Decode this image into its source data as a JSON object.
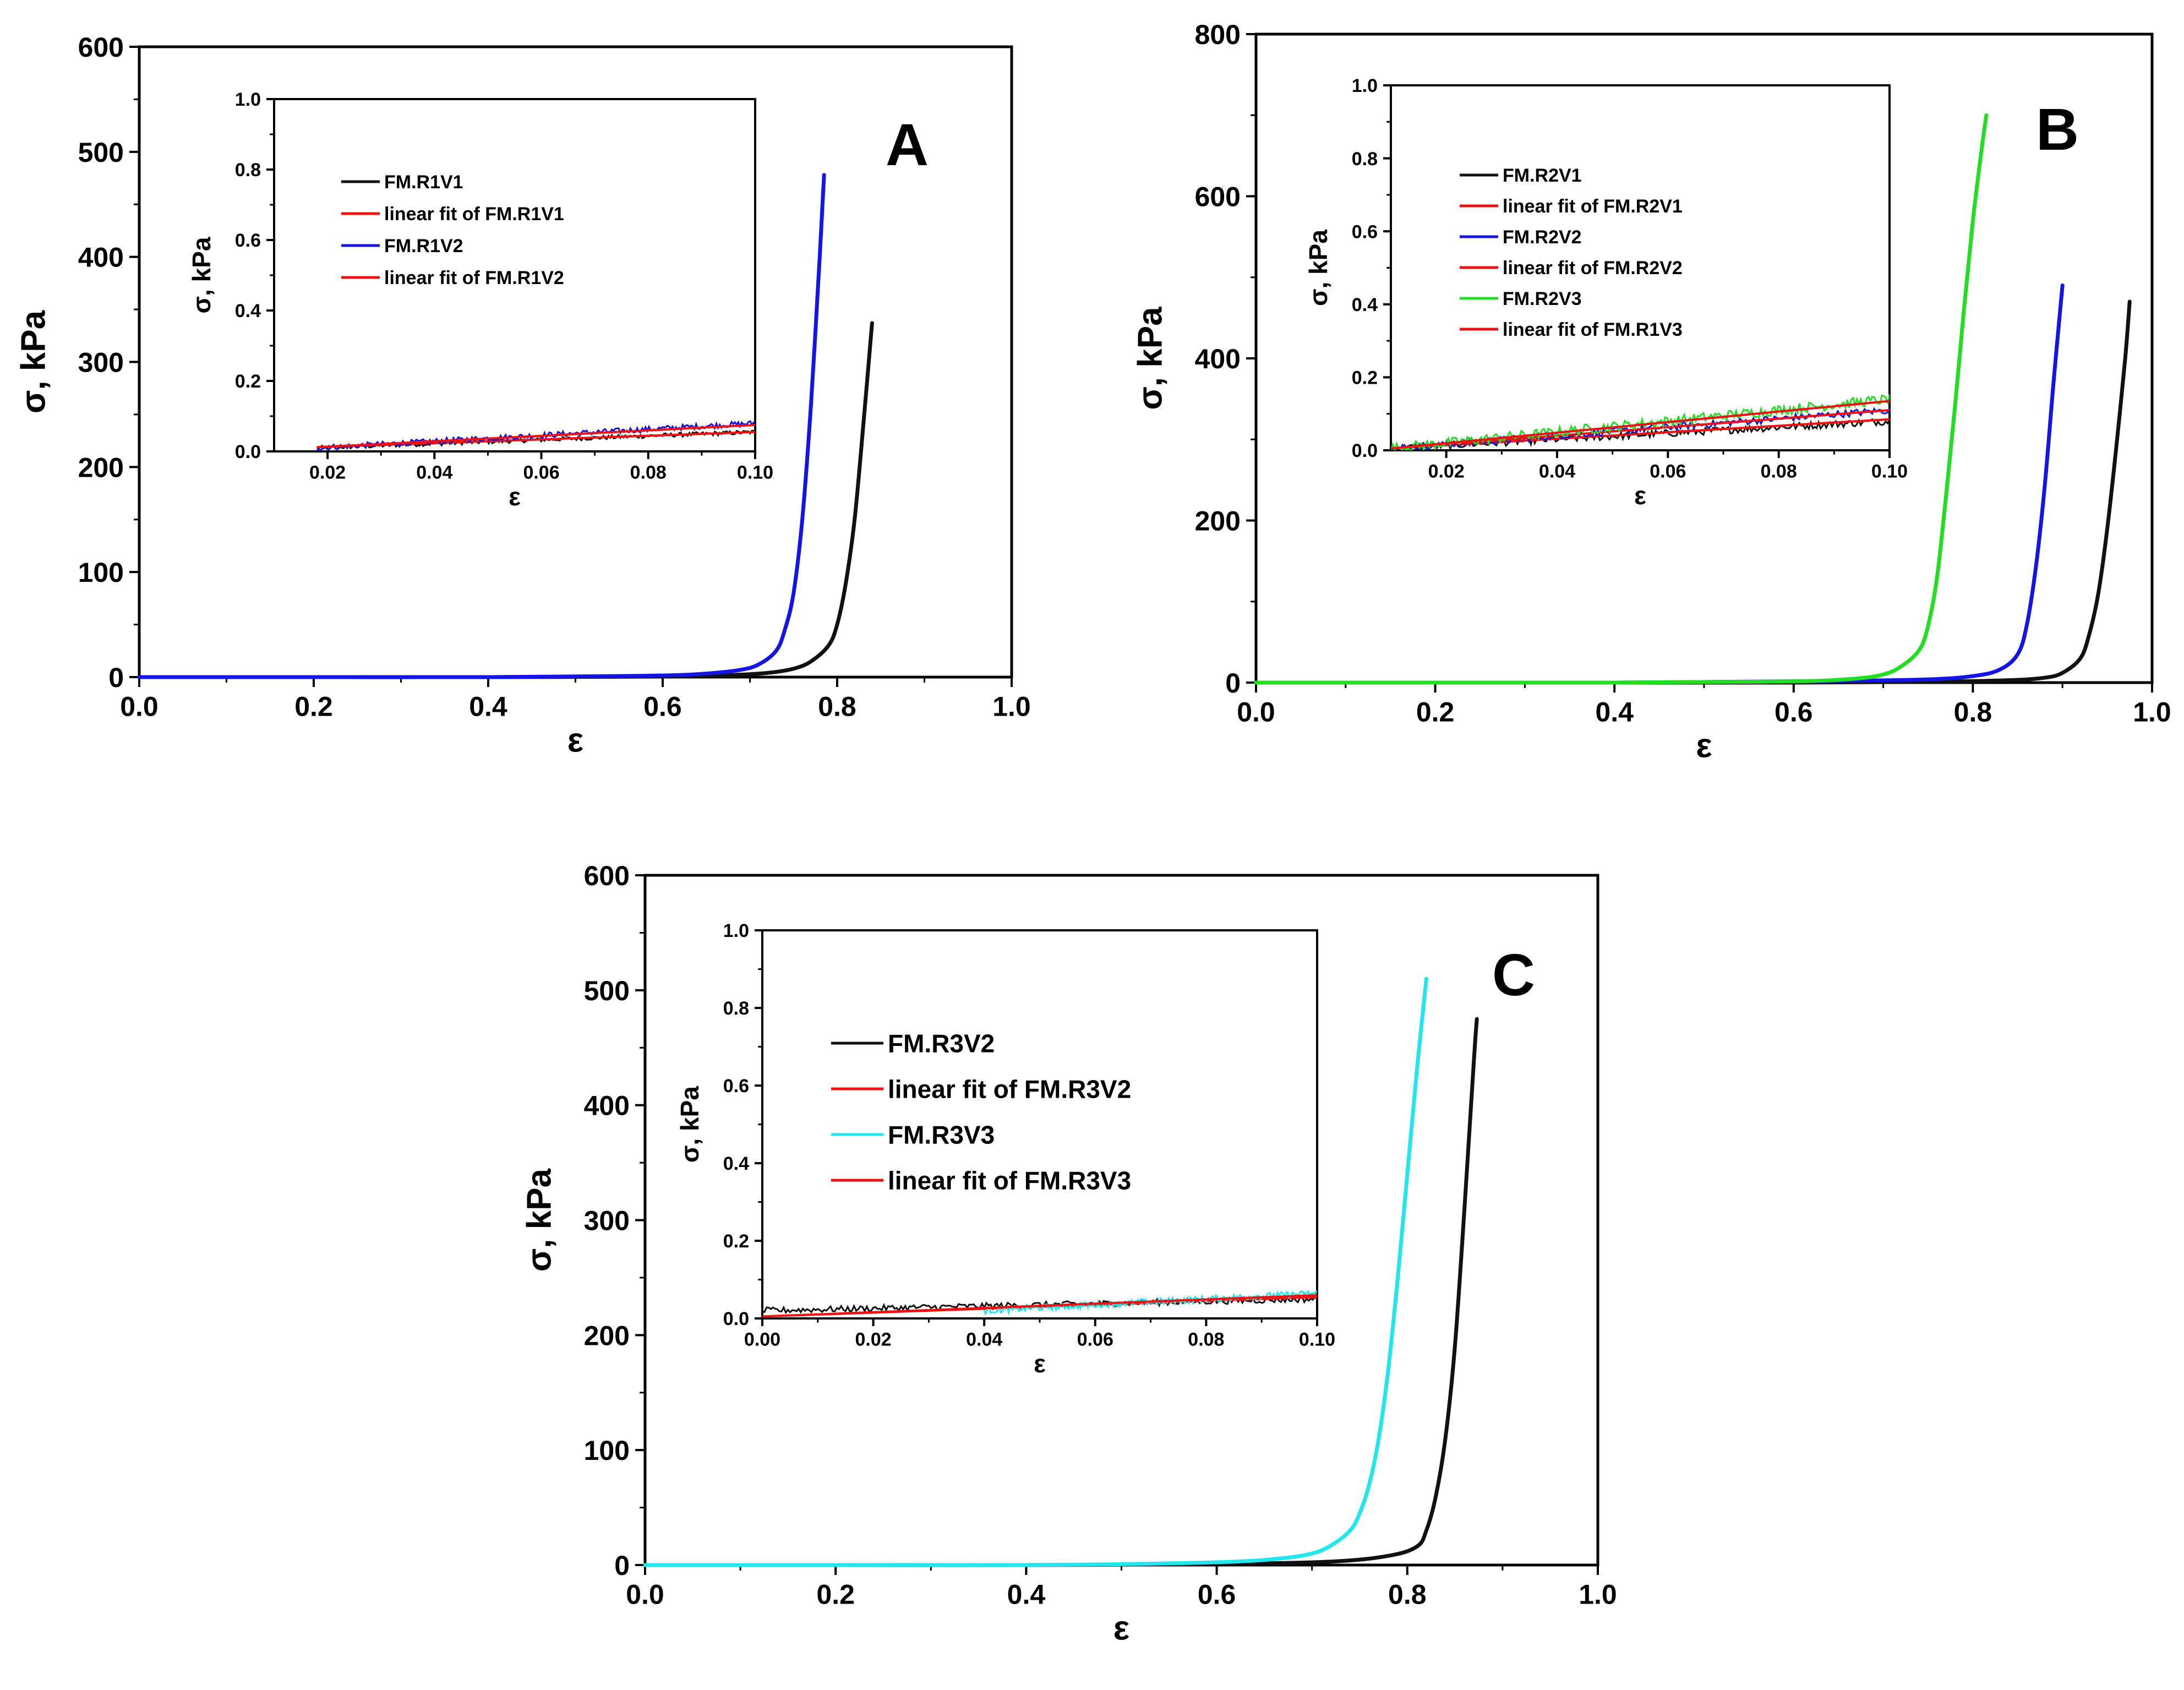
{
  "colors": {
    "black": "#111111",
    "red": "#ee1111",
    "blue": "#1414e6",
    "green": "#22dd22",
    "cyan": "#22e6ee",
    "axis": "#000000"
  },
  "chart_data": [
    {
      "type": "line",
      "panel": "A",
      "title": "",
      "xlabel": "ε",
      "ylabel": "σ, kPa",
      "xlim": [
        0.0,
        1.0
      ],
      "ylim": [
        0,
        600
      ],
      "xticks": [
        0.0,
        0.2,
        0.4,
        0.6,
        0.8,
        1.0
      ],
      "yticks": [
        0,
        100,
        200,
        300,
        400,
        500,
        600
      ],
      "xtick_labels": [
        "0.0",
        "0.2",
        "0.4",
        "0.6",
        "0.8",
        "1.0"
      ],
      "ytick_labels": [
        "0",
        "100",
        "200",
        "300",
        "400",
        "500",
        "600"
      ],
      "legend_position": "none",
      "series": [
        {
          "name": "FM.R1V1",
          "color": "black",
          "x": [
            0.0,
            0.2,
            0.4,
            0.6,
            0.68,
            0.72,
            0.75,
            0.77,
            0.79,
            0.8,
            0.81,
            0.82,
            0.83,
            0.84
          ],
          "y": [
            0,
            0,
            0,
            0.5,
            2,
            4,
            8,
            15,
            30,
            50,
            90,
            150,
            240,
            337
          ]
        },
        {
          "name": "FM.R1V2",
          "color": "blue",
          "x": [
            0.0,
            0.2,
            0.4,
            0.55,
            0.62,
            0.66,
            0.69,
            0.71,
            0.73,
            0.74,
            0.75,
            0.76,
            0.77,
            0.78,
            0.785
          ],
          "y": [
            0,
            0,
            0,
            1,
            2,
            4,
            7,
            12,
            25,
            45,
            80,
            150,
            260,
            400,
            478
          ]
        }
      ],
      "inset": {
        "xlabel": "ε",
        "ylabel": "σ, kPa",
        "xlim": [
          0.01,
          0.1
        ],
        "ylim": [
          0.0,
          1.0
        ],
        "xticks": [
          0.02,
          0.04,
          0.06,
          0.08,
          0.1
        ],
        "yticks": [
          0.0,
          0.2,
          0.4,
          0.6,
          0.8,
          1.0
        ],
        "xtick_labels": [
          "0.02",
          "0.04",
          "0.06",
          "0.08",
          "0.10"
        ],
        "ytick_labels": [
          "0.0",
          "0.2",
          "0.4",
          "0.6",
          "0.8",
          "1.0"
        ],
        "legend_position": "upper-left",
        "series": [
          {
            "name": "FM.R1V1",
            "color": "black",
            "kind": "noisy",
            "x0": 0.018,
            "x1": 0.1,
            "y0": 0.01,
            "y1": 0.055,
            "noise": 0.006
          },
          {
            "name": "linear fit of FM.R1V1",
            "color": "red",
            "kind": "line",
            "x0": 0.018,
            "x1": 0.1,
            "y0": 0.012,
            "y1": 0.055
          },
          {
            "name": "FM.R1V2",
            "color": "blue",
            "kind": "noisy",
            "x0": 0.018,
            "x1": 0.1,
            "y0": 0.01,
            "y1": 0.08,
            "noise": 0.008
          },
          {
            "name": "linear fit of FM.R1V2",
            "color": "red",
            "kind": "line",
            "x0": 0.018,
            "x1": 0.1,
            "y0": 0.012,
            "y1": 0.075
          }
        ]
      }
    },
    {
      "type": "line",
      "panel": "B",
      "title": "",
      "xlabel": "ε",
      "ylabel": "σ, kPa",
      "xlim": [
        0.0,
        1.0
      ],
      "ylim": [
        0,
        800
      ],
      "xticks": [
        0.0,
        0.2,
        0.4,
        0.6,
        0.8,
        1.0
      ],
      "yticks": [
        0,
        200,
        400,
        600,
        800
      ],
      "xtick_labels": [
        "0.0",
        "0.2",
        "0.4",
        "0.6",
        "0.8",
        "1.0"
      ],
      "ytick_labels": [
        "0",
        "200",
        "400",
        "600",
        "800"
      ],
      "legend_position": "none",
      "series": [
        {
          "name": "FM.R2V1",
          "color": "black",
          "x": [
            0.0,
            0.2,
            0.4,
            0.6,
            0.75,
            0.84,
            0.88,
            0.9,
            0.92,
            0.93,
            0.94,
            0.95,
            0.96,
            0.97,
            0.975
          ],
          "y": [
            0,
            0,
            0,
            0,
            1,
            3,
            6,
            12,
            30,
            60,
            110,
            190,
            290,
            400,
            470
          ]
        },
        {
          "name": "FM.R2V2",
          "color": "blue",
          "x": [
            0.0,
            0.2,
            0.4,
            0.53,
            0.65,
            0.75,
            0.8,
            0.83,
            0.85,
            0.86,
            0.87,
            0.88,
            0.89,
            0.9
          ],
          "y": [
            0,
            0,
            0,
            1,
            2,
            4,
            8,
            16,
            35,
            70,
            140,
            240,
            370,
            490
          ]
        },
        {
          "name": "FM.R2V3",
          "color": "green",
          "x": [
            0.0,
            0.2,
            0.4,
            0.55,
            0.62,
            0.67,
            0.7,
            0.72,
            0.74,
            0.75,
            0.76,
            0.77,
            0.78,
            0.79,
            0.8,
            0.81,
            0.815
          ],
          "y": [
            0,
            0,
            0,
            1,
            2,
            5,
            10,
            20,
            40,
            70,
            130,
            230,
            340,
            460,
            570,
            660,
            700
          ]
        }
      ],
      "inset": {
        "xlabel": "ε",
        "ylabel": "σ, kPa",
        "xlim": [
          0.01,
          0.1
        ],
        "ylim": [
          0.0,
          1.0
        ],
        "xticks": [
          0.02,
          0.04,
          0.06,
          0.08,
          0.1
        ],
        "yticks": [
          0.0,
          0.2,
          0.4,
          0.6,
          0.8,
          1.0
        ],
        "xtick_labels": [
          "0.02",
          "0.04",
          "0.06",
          "0.08",
          "0.10"
        ],
        "ytick_labels": [
          "0.0",
          "0.2",
          "0.4",
          "0.6",
          "0.8",
          "1.0"
        ],
        "legend_position": "upper-left",
        "series": [
          {
            "name": "FM.R2V1",
            "color": "black",
            "kind": "noisy",
            "x0": 0.01,
            "x1": 0.1,
            "y0": 0.005,
            "y1": 0.08,
            "noise": 0.01
          },
          {
            "name": "linear fit of FM.R2V1",
            "color": "red",
            "kind": "line",
            "x0": 0.01,
            "x1": 0.1,
            "y0": 0.005,
            "y1": 0.085
          },
          {
            "name": "FM.R2V2",
            "color": "blue",
            "kind": "noisy",
            "x0": 0.01,
            "x1": 0.1,
            "y0": 0.005,
            "y1": 0.11,
            "noise": 0.01
          },
          {
            "name": "linear fit of FM.R2V2",
            "color": "red",
            "kind": "line",
            "x0": 0.01,
            "x1": 0.1,
            "y0": 0.005,
            "y1": 0.11
          },
          {
            "name": "FM.R2V3",
            "color": "green",
            "kind": "noisy",
            "x0": 0.01,
            "x1": 0.1,
            "y0": 0.005,
            "y1": 0.14,
            "noise": 0.014
          },
          {
            "name": "linear fit of FM.R1V3",
            "color": "red",
            "kind": "line",
            "x0": 0.01,
            "x1": 0.1,
            "y0": 0.005,
            "y1": 0.135
          }
        ]
      }
    },
    {
      "type": "line",
      "panel": "C",
      "title": "",
      "xlabel": "ε",
      "ylabel": "σ, kPa",
      "xlim": [
        0.0,
        1.0
      ],
      "ylim": [
        0,
        600
      ],
      "xticks": [
        0.0,
        0.2,
        0.4,
        0.6,
        0.8,
        1.0
      ],
      "yticks": [
        0,
        100,
        200,
        300,
        400,
        500,
        600
      ],
      "xtick_labels": [
        "0.0",
        "0.2",
        "0.4",
        "0.6",
        "0.8",
        "1.0"
      ],
      "ytick_labels": [
        "0",
        "100",
        "200",
        "300",
        "400",
        "500",
        "600"
      ],
      "legend_position": "none",
      "series": [
        {
          "name": "FM.R3V2",
          "color": "black",
          "x": [
            0.0,
            0.2,
            0.4,
            0.6,
            0.72,
            0.78,
            0.81,
            0.82,
            0.83,
            0.84,
            0.85,
            0.86,
            0.87,
            0.873
          ],
          "y": [
            0,
            0,
            0,
            1,
            3,
            8,
            16,
            30,
            60,
            110,
            190,
            310,
            440,
            475
          ]
        },
        {
          "name": "FM.R3V3",
          "color": "cyan",
          "x": [
            0.0,
            0.2,
            0.4,
            0.52,
            0.62,
            0.67,
            0.7,
            0.72,
            0.74,
            0.75,
            0.76,
            0.77,
            0.78,
            0.79,
            0.8,
            0.81,
            0.82
          ],
          "y": [
            0,
            0,
            0,
            1,
            3,
            6,
            10,
            17,
            30,
            45,
            70,
            110,
            170,
            250,
            340,
            430,
            510
          ]
        }
      ],
      "inset": {
        "xlabel": "ε",
        "ylabel": "σ, kPa",
        "xlim": [
          0.0,
          0.1
        ],
        "ylim": [
          0.0,
          1.0
        ],
        "xticks": [
          0.0,
          0.02,
          0.04,
          0.06,
          0.08,
          0.1
        ],
        "yticks": [
          0.0,
          0.2,
          0.4,
          0.6,
          0.8,
          1.0
        ],
        "xtick_labels": [
          "0.00",
          "0.02",
          "0.04",
          "0.06",
          "0.08",
          "0.10"
        ],
        "ytick_labels": [
          "0.0",
          "0.2",
          "0.4",
          "0.6",
          "0.8",
          "1.0"
        ],
        "legend_position": "upper-left",
        "series": [
          {
            "name": "FM.R3V2",
            "color": "black",
            "kind": "noisy",
            "x0": 0.0,
            "x1": 0.1,
            "y0": 0.02,
            "y1": 0.05,
            "noise": 0.008
          },
          {
            "name": "linear fit of FM.R3V2",
            "color": "red",
            "kind": "line",
            "x0": 0.0,
            "x1": 0.1,
            "y0": 0.005,
            "y1": 0.055
          },
          {
            "name": "FM.R3V3",
            "color": "cyan",
            "kind": "noisy",
            "x0": 0.04,
            "x1": 0.1,
            "y0": 0.02,
            "y1": 0.065,
            "noise": 0.008
          },
          {
            "name": "linear fit of FM.R3V3",
            "color": "red",
            "kind": "line",
            "x0": 0.0,
            "x1": 0.1,
            "y0": 0.005,
            "y1": 0.06
          }
        ]
      }
    }
  ]
}
